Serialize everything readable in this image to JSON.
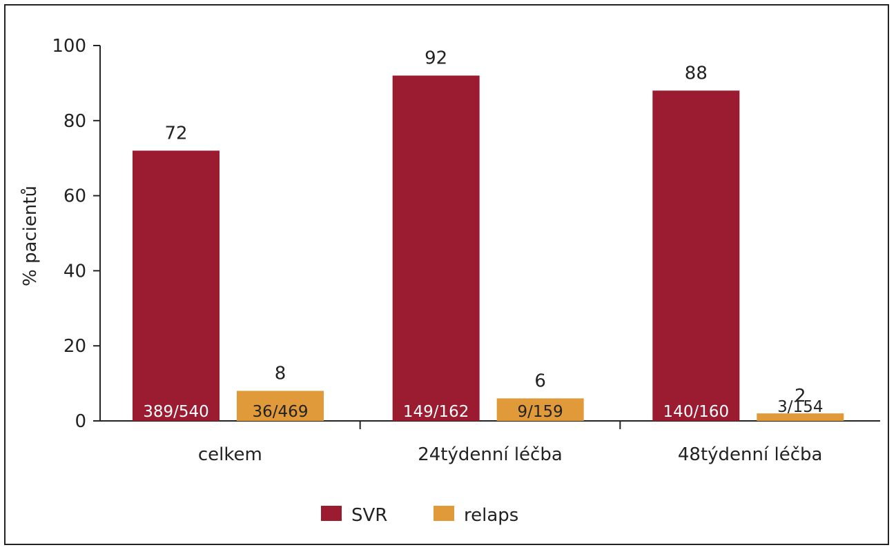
{
  "chart_data": {
    "type": "bar",
    "title": "",
    "xlabel": "",
    "ylabel": "% pacientů",
    "ylim": [
      0,
      100
    ],
    "yticks": [
      0,
      20,
      40,
      60,
      80,
      100
    ],
    "grid": false,
    "legend_position": "bottom-center",
    "categories": [
      "celkem",
      "24týdenní léčba",
      "48týdenní léčba"
    ],
    "series": [
      {
        "name": "SVR",
        "color": "#9b1b30",
        "values": [
          72,
          92,
          88
        ],
        "counts": [
          "389/540",
          "149/162",
          "140/160"
        ]
      },
      {
        "name": "relaps",
        "color": "#e09a3a",
        "values": [
          8,
          6,
          2
        ],
        "counts": [
          "36/469",
          "9/159",
          "3/154"
        ]
      }
    ]
  }
}
